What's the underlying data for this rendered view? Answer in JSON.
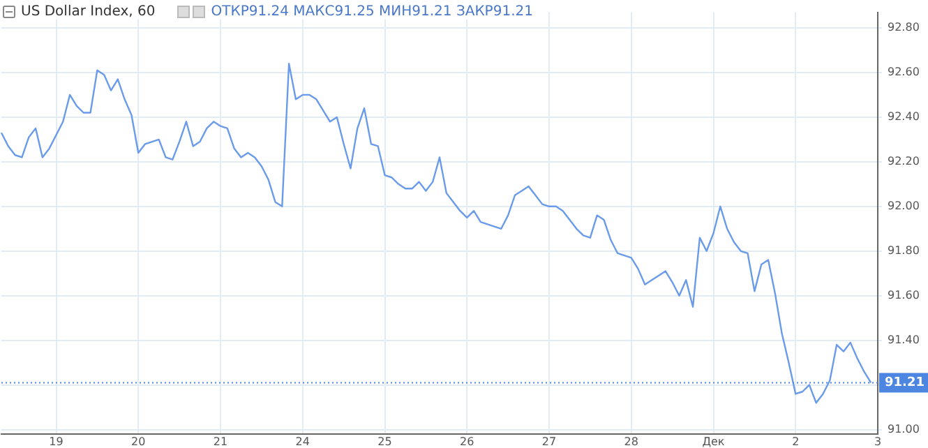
{
  "chart_data": {
    "type": "line",
    "title": "US Dollar Index, 60",
    "annotations": [
      "ОТКР91.24 МАКС91.25 МИН91.21 ЗАКР91.21"
    ],
    "categories": [
      null,
      null,
      null,
      null,
      null,
      null,
      null,
      null,
      "19",
      null,
      null,
      null,
      null,
      null,
      null,
      null,
      null,
      null,
      null,
      null,
      "20",
      null,
      null,
      null,
      null,
      null,
      null,
      null,
      null,
      null,
      null,
      null,
      "21",
      null,
      null,
      null,
      null,
      null,
      null,
      null,
      null,
      null,
      null,
      null,
      "24",
      null,
      null,
      null,
      null,
      null,
      null,
      null,
      null,
      null,
      null,
      null,
      "25",
      null,
      null,
      null,
      null,
      null,
      null,
      null,
      null,
      null,
      null,
      null,
      "26",
      null,
      null,
      null,
      null,
      null,
      null,
      null,
      null,
      null,
      null,
      null,
      "27",
      null,
      null,
      null,
      null,
      null,
      null,
      null,
      null,
      null,
      null,
      null,
      "28",
      null,
      null,
      null,
      null,
      null,
      null,
      null,
      null,
      null,
      null,
      null,
      "Дек",
      null,
      null,
      null,
      null,
      null,
      null,
      null,
      null,
      null,
      null,
      null,
      "2",
      null,
      null,
      null,
      null,
      null,
      null,
      null,
      null,
      null,
      null,
      null,
      "3"
    ],
    "ylim": [
      90.98,
      92.87
    ],
    "yticks": [
      {
        "value": 91,
        "label": "91.00"
      },
      {
        "value": 91.2,
        "label": null
      },
      {
        "value": 91.4,
        "label": "91.40"
      },
      {
        "value": 91.6,
        "label": "91.60"
      },
      {
        "value": 91.8,
        "label": "91.80"
      },
      {
        "value": 92,
        "label": "92.00"
      },
      {
        "value": 92.2,
        "label": "92.20"
      },
      {
        "value": 92.4,
        "label": "92.40"
      },
      {
        "value": 92.6,
        "label": "92.60"
      },
      {
        "value": 92.8,
        "label": "92.80"
      }
    ],
    "grid": true,
    "marker": "none",
    "line_style": "solid",
    "ref_lines": [
      {
        "axis": "y",
        "value": 91.21,
        "label": "91.21",
        "color": "#4d86e0",
        "line_style": "dotted"
      }
    ],
    "series": [
      {
        "color": "#6a9bea",
        "values": [
          92.33,
          92.27,
          92.23,
          92.22,
          92.31,
          92.35,
          92.22,
          92.26,
          92.32,
          92.38,
          92.5,
          92.45,
          92.42,
          92.42,
          92.61,
          92.59,
          92.52,
          92.57,
          92.48,
          92.41,
          92.24,
          92.28,
          92.29,
          92.3,
          92.22,
          92.21,
          92.29,
          92.38,
          92.27,
          92.29,
          92.35,
          92.38,
          92.36,
          92.35,
          92.26,
          92.22,
          92.24,
          92.22,
          92.18,
          92.12,
          92.02,
          92.0,
          92.64,
          92.48,
          92.5,
          92.5,
          92.48,
          92.43,
          92.38,
          92.4,
          92.28,
          92.17,
          92.35,
          92.44,
          92.28,
          92.27,
          92.14,
          92.13,
          92.1,
          92.08,
          92.08,
          92.11,
          92.07,
          92.11,
          92.22,
          92.06,
          92.02,
          91.98,
          91.95,
          91.98,
          91.93,
          91.92,
          91.91,
          91.9,
          91.96,
          92.05,
          92.07,
          92.09,
          92.05,
          92.01,
          92.0,
          92.0,
          91.98,
          91.94,
          91.9,
          91.87,
          91.86,
          91.96,
          91.94,
          91.85,
          91.79,
          91.78,
          91.77,
          91.72,
          91.65,
          91.67,
          91.69,
          91.71,
          91.66,
          91.6,
          91.67,
          91.55,
          91.86,
          91.8,
          91.88,
          92.0,
          91.9,
          91.84,
          91.8,
          91.79,
          91.62,
          91.74,
          91.76,
          91.61,
          91.43,
          91.3,
          91.16,
          91.17,
          91.2,
          91.12,
          91.16,
          91.22,
          91.38,
          91.35,
          91.39,
          91.32,
          91.26,
          91.21,
          null
        ]
      }
    ]
  }
}
